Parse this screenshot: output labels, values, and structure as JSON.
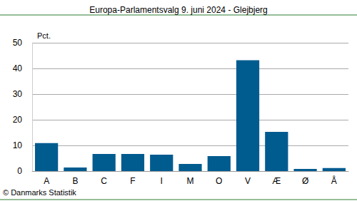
{
  "chart_data": {
    "type": "bar",
    "title": "Europa-Parlamentsvalg 9. juni 2024 - Glejbjerg",
    "ylabel": "Pct.",
    "source": "© Danmarks Statistik",
    "categories": [
      "A",
      "B",
      "C",
      "F",
      "I",
      "M",
      "O",
      "V",
      "Æ",
      "Ø",
      "Å"
    ],
    "values": [
      10.9,
      1.4,
      6.7,
      6.7,
      6.4,
      2.8,
      5.8,
      43.2,
      15.3,
      0.8,
      1.2
    ],
    "color": "#005b8f",
    "ylim": [
      0,
      50
    ],
    "yticks": [
      0,
      10,
      20,
      30,
      40,
      50
    ],
    "grid": true
  }
}
